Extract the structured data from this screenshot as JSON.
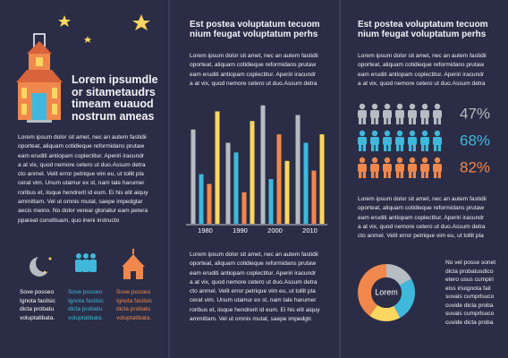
{
  "left": {
    "title": [
      "Lorem ipsumdle",
      "or sitametaudrs",
      "timeam euauod",
      "nostrum ameas"
    ],
    "paragraph": [
      "Lorem ipsum dolor sit amet, nec an autem fastidii",
      "oporteat, aliquam cotidieque reformidans prutaw",
      "eam eruditi antiopam coplectitur. Aperiri iracundr",
      "a at vix, quod nemore cetero ut duo.Assum detra",
      "cto anmel. Velit error petrique vim eu, ut tollit pla",
      "cerat vim. Unum utamur ex st, nam tale harumer",
      "roribus et, iisque hendrerit id eum. Ei his elit aiquy",
      "ammittam. Vel ut omnis mutat, saepe impedgtar",
      "aecis meino. No dolor verear gloriatur eam petera",
      "ppareat constituam, quo ineni instructo"
    ],
    "captions": [
      {
        "color": "#ffffff",
        "lines": [
          "Sove posseo",
          "Ignota facilsic",
          "dicta probatu",
          "voluptatibata."
        ]
      },
      {
        "color": "#3fb8dc",
        "lines": [
          "Sove posseo",
          "Ignota facilsic",
          "dicta probatu",
          "voluptatibata."
        ]
      },
      {
        "color": "#f0884d",
        "lines": [
          "Sove posseo",
          "Ignota facilsic",
          "dicta probatu",
          "voluptatibata."
        ]
      }
    ]
  },
  "middle": {
    "heading": [
      "Est postea voluptatum tecuom",
      "nium feugat voluptatum perhs"
    ],
    "paragraph1": [
      "Lorem ipsum dolor sit amet, nec an autem fastidii",
      "oporteat, aliquam cotidieque reformidans prutaw",
      "eam eruditi antiopam coplectitur. Aperiri iracundr",
      "a at vix, quod nemore cetero ut duo.Assum detra"
    ],
    "paragraph2": [
      "Lorem ipsum dolor sit amet, nec an autem fastidii",
      "oporteat, aliquam cotidieque reformidans prutaw",
      "eam eruditi antiopam coplectitur. Aperiri iracundr",
      "a at vix, quod nemore cetero ut duo.Assum detra",
      "cto anmel. Velit error petrique vim eu, ut tollit pla",
      "cerat vim. Unum utamur ex st, nam tale harumer",
      "roribus et, iisque hendrerit id eum. Ei his elit aiquy",
      "ammittam. Vel ut omnis mutat, saepe impedgtr."
    ]
  },
  "right": {
    "heading": [
      "Est postea voluptatum tecuom",
      "nium feugat voluptatum perhs"
    ],
    "paragraph1": [
      "Lorem ipsum dolor sit amet, nec an autem fastidii",
      "oporteat, aliquam cotidieque reformidans prutaw",
      "eam eruditi antiopam coplectitur. Aperiri iracundr",
      "a at vix, quod nemore cetero ut duo.Assum detra"
    ],
    "stats": [
      {
        "label": "47%",
        "color": "#b5bcc2"
      },
      {
        "label": "68%",
        "color": "#3fb8dc"
      },
      {
        "label": "82%",
        "color": "#f0884d"
      }
    ],
    "paragraph2": [
      "Lorem ipsum dolor sit amet, nec an autem fastidii",
      "oporteat, aliquam cotidieque reformidans prutaw",
      "eam eruditi antiopam coplectitur. Aperiri iracundr",
      "a at vix, quod nemore cetero ut duo.Assum detra",
      "cto anmel. Velit error petrique vim eu, ut tollit pla"
    ],
    "side_text": [
      "No vel posse sonet",
      "dicta probatusdico",
      "etero usus cumpiri",
      "eiss iriuignota fail",
      "suvais cumprlsuco",
      "cuvide dicta proba",
      "suvais cumprlsuco",
      "cuvide dicta proba"
    ]
  },
  "chart_data": [
    {
      "type": "bar",
      "categories": [
        "1980",
        "1990",
        "2000",
        "2010"
      ],
      "ylim": [
        0,
        100
      ],
      "series": [
        {
          "color": "#b5bcc2",
          "values": [
            78,
            67,
            98,
            90
          ]
        },
        {
          "color": "#3fb8dc",
          "values": [
            41,
            59,
            37,
            67
          ]
        },
        {
          "color": "#f0884d",
          "values": [
            33,
            26,
            74,
            44
          ]
        },
        {
          "color": "#fbd660",
          "values": [
            93,
            85,
            52,
            74
          ]
        }
      ]
    },
    {
      "type": "pie",
      "center_label": "Lorem",
      "values": [
        17,
        25,
        18,
        40
      ],
      "colors": [
        "#b5bcc2",
        "#3fb8dc",
        "#fbd660",
        "#f0884d"
      ]
    }
  ]
}
